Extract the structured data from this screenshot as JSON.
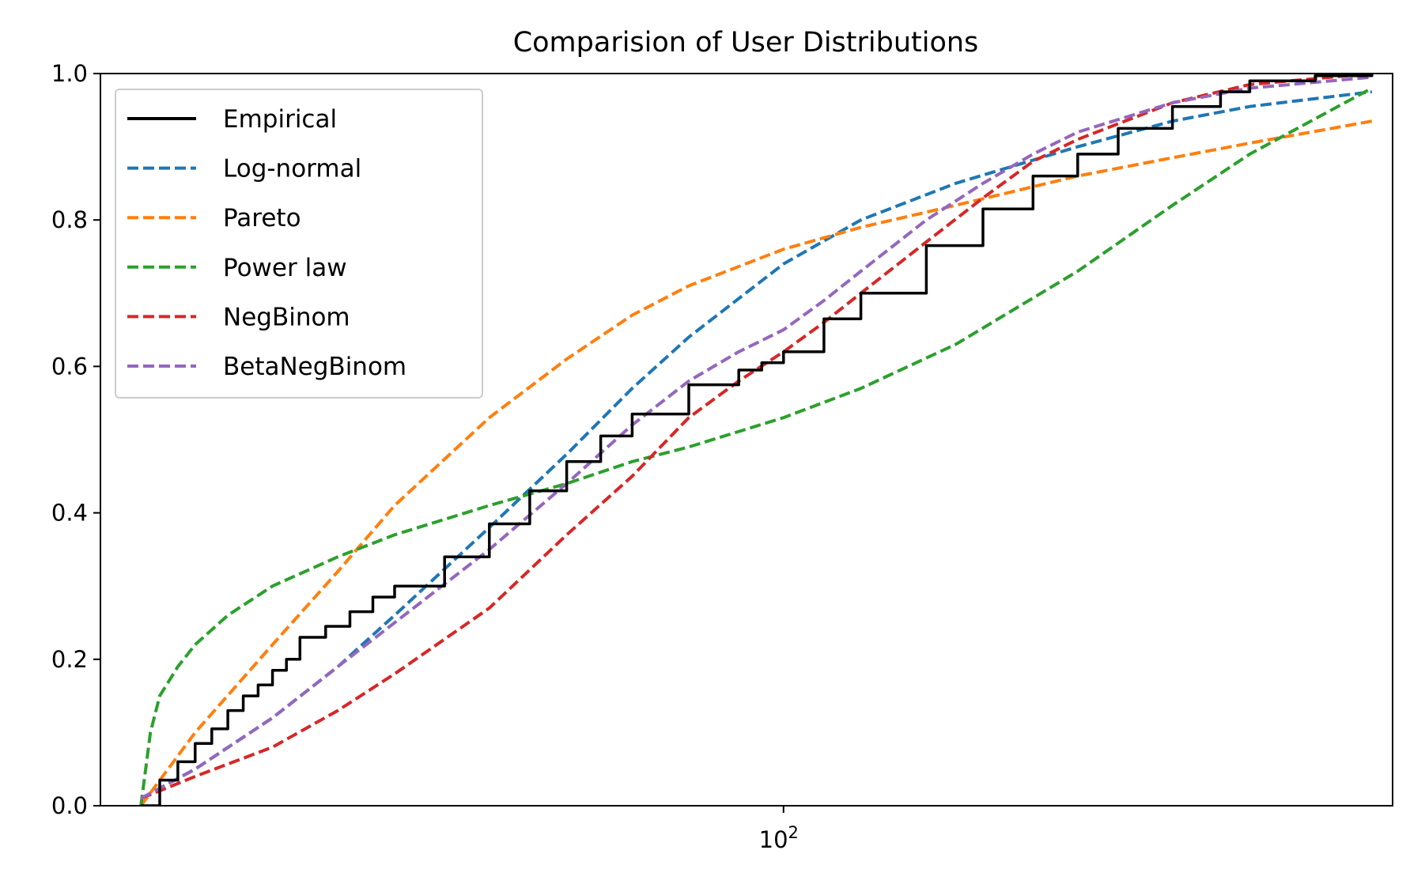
{
  "chart_data": {
    "type": "line",
    "title": "Comparision of User Distributions",
    "xlabel": "",
    "ylabel": "",
    "xscale": "log",
    "xlim": [
      20,
      420
    ],
    "ylim": [
      0,
      1.0
    ],
    "x_ticks": [
      {
        "value": 100,
        "label": "10",
        "exp": "2"
      }
    ],
    "y_ticks": [
      {
        "value": 0.0,
        "label": "0.0"
      },
      {
        "value": 0.2,
        "label": "0.2"
      },
      {
        "value": 0.4,
        "label": "0.4"
      },
      {
        "value": 0.6,
        "label": "0.6"
      },
      {
        "value": 0.8,
        "label": "0.8"
      },
      {
        "value": 1.0,
        "label": "1.0"
      }
    ],
    "grid": false,
    "legend_position": "upper-left",
    "series": [
      {
        "name": "Empirical",
        "color": "#000000",
        "style": "solid",
        "step": true,
        "x": [
          22,
          23,
          24,
          25,
          26,
          27,
          28,
          29,
          30,
          31,
          32,
          34,
          36,
          38,
          40,
          45,
          50,
          55,
          60,
          65,
          70,
          80,
          90,
          95,
          100,
          110,
          120,
          140,
          160,
          180,
          200,
          220,
          250,
          280,
          300,
          350,
          400
        ],
        "y": [
          0.0,
          0.035,
          0.06,
          0.085,
          0.105,
          0.13,
          0.15,
          0.165,
          0.185,
          0.2,
          0.23,
          0.245,
          0.265,
          0.285,
          0.3,
          0.34,
          0.385,
          0.43,
          0.47,
          0.505,
          0.535,
          0.575,
          0.595,
          0.605,
          0.62,
          0.665,
          0.7,
          0.765,
          0.815,
          0.86,
          0.89,
          0.925,
          0.955,
          0.975,
          0.99,
          0.997,
          1.0
        ]
      },
      {
        "name": "Log-normal",
        "color": "#1f77b4",
        "style": "dashed",
        "x": [
          22,
          25,
          30,
          35,
          40,
          50,
          60,
          70,
          80,
          100,
          120,
          150,
          200,
          250,
          300,
          400
        ],
        "y": [
          0.01,
          0.05,
          0.12,
          0.19,
          0.26,
          0.38,
          0.48,
          0.57,
          0.64,
          0.74,
          0.8,
          0.85,
          0.9,
          0.935,
          0.955,
          0.975
        ]
      },
      {
        "name": "Pareto",
        "color": "#ff7f0e",
        "style": "dashed",
        "x": [
          22,
          25,
          30,
          35,
          40,
          50,
          60,
          70,
          80,
          100,
          120,
          150,
          200,
          250,
          300,
          400
        ],
        "y": [
          0.0,
          0.1,
          0.22,
          0.32,
          0.41,
          0.53,
          0.61,
          0.67,
          0.71,
          0.76,
          0.79,
          0.82,
          0.86,
          0.885,
          0.905,
          0.935
        ]
      },
      {
        "name": "Power law",
        "color": "#2ca02c",
        "style": "dashed",
        "x": [
          22,
          22.5,
          23,
          24,
          25,
          27,
          30,
          35,
          40,
          50,
          60,
          70,
          80,
          100,
          120,
          150,
          200,
          250,
          300,
          400
        ],
        "y": [
          0.0,
          0.1,
          0.15,
          0.19,
          0.22,
          0.26,
          0.3,
          0.34,
          0.37,
          0.41,
          0.44,
          0.47,
          0.49,
          0.53,
          0.57,
          0.63,
          0.73,
          0.82,
          0.89,
          0.98
        ]
      },
      {
        "name": "NegBinom",
        "color": "#d62728",
        "style": "dashed",
        "x": [
          22,
          25,
          30,
          35,
          40,
          50,
          60,
          70,
          80,
          90,
          100,
          110,
          120,
          140,
          160,
          180,
          200,
          250,
          300,
          400
        ],
        "y": [
          0.01,
          0.04,
          0.08,
          0.13,
          0.18,
          0.27,
          0.37,
          0.45,
          0.53,
          0.58,
          0.62,
          0.66,
          0.7,
          0.77,
          0.83,
          0.88,
          0.91,
          0.96,
          0.985,
          1.0
        ]
      },
      {
        "name": "BetaNegBinom",
        "color": "#9467bd",
        "style": "dashed",
        "x": [
          22,
          25,
          30,
          35,
          40,
          50,
          60,
          70,
          80,
          90,
          100,
          110,
          120,
          140,
          160,
          180,
          200,
          250,
          300,
          400
        ],
        "y": [
          0.01,
          0.05,
          0.12,
          0.19,
          0.25,
          0.35,
          0.44,
          0.52,
          0.58,
          0.62,
          0.65,
          0.69,
          0.73,
          0.8,
          0.85,
          0.89,
          0.92,
          0.96,
          0.98,
          0.995
        ]
      }
    ]
  }
}
